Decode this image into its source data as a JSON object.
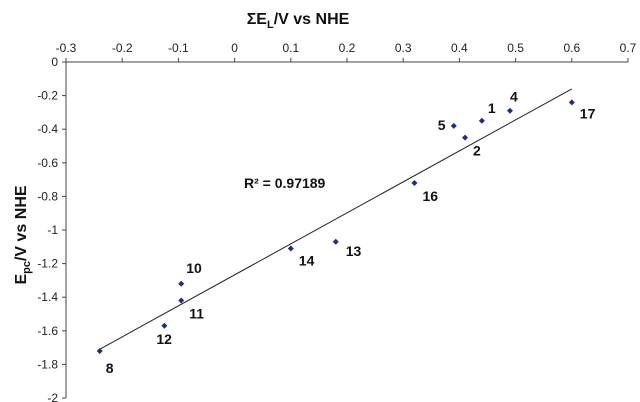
{
  "chart_data": {
    "type": "scatter",
    "title": "",
    "xlabel": {
      "main": "ΣE",
      "sub": "L",
      "rest": "/V vs NHE"
    },
    "ylabel": {
      "main": "E",
      "sub": "pc",
      "rest": "/V vs NHE"
    },
    "xlim": [
      -0.3,
      0.7
    ],
    "ylim": [
      -2,
      0
    ],
    "x_ticks": [
      -0.3,
      -0.2,
      -0.1,
      0,
      0.1,
      0.2,
      0.3,
      0.4,
      0.5,
      0.6,
      0.7
    ],
    "x_tick_labels": [
      "-0.3",
      "-0.2",
      "-0.1",
      "0",
      "0.1",
      "0.2",
      "0.3",
      "0.4",
      "0.5",
      "0.6",
      "0.7"
    ],
    "y_ticks": [
      0,
      -0.2,
      -0.4,
      -0.6,
      -0.8,
      -1,
      -1.2,
      -1.4,
      -1.6,
      -1.8,
      -2
    ],
    "y_tick_labels": [
      "0",
      "-0.2",
      "-0.4",
      "-0.6",
      "-0.8",
      "-1",
      "-1.2",
      "-1.4",
      "-1.6",
      "-1.8",
      "-2"
    ],
    "x_axis_position": "top",
    "grid": false,
    "marker_color": "#1f2a8a",
    "trendline_color": "#222222",
    "points": [
      {
        "label": "1",
        "x": 0.44,
        "y": -0.35
      },
      {
        "label": "2",
        "x": 0.41,
        "y": -0.45
      },
      {
        "label": "4",
        "x": 0.49,
        "y": -0.29
      },
      {
        "label": "5",
        "x": 0.39,
        "y": -0.38
      },
      {
        "label": "8",
        "x": -0.24,
        "y": -1.72
      },
      {
        "label": "10",
        "x": -0.095,
        "y": -1.32
      },
      {
        "label": "11",
        "x": -0.095,
        "y": -1.42
      },
      {
        "label": "12",
        "x": -0.125,
        "y": -1.57
      },
      {
        "label": "13",
        "x": 0.18,
        "y": -1.07
      },
      {
        "label": "14",
        "x": 0.1,
        "y": -1.11
      },
      {
        "label": "16",
        "x": 0.32,
        "y": -0.72
      },
      {
        "label": "17",
        "x": 0.6,
        "y": -0.24
      }
    ],
    "trendline": {
      "x": [
        -0.24,
        0.6
      ],
      "y": [
        -1.71,
        -0.16
      ]
    },
    "annotation": "R² = 0.97189"
  }
}
